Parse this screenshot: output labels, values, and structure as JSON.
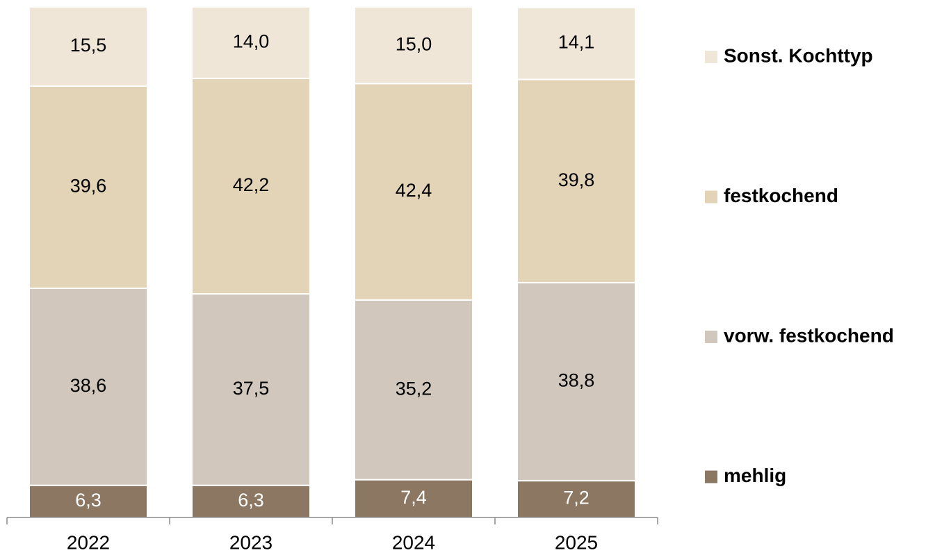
{
  "chart_data": {
    "type": "stacked_bar",
    "categories": [
      "2022",
      "2023",
      "2024",
      "2025"
    ],
    "series": [
      {
        "name": "mehlig",
        "color": "#8c7762",
        "values": [
          6.3,
          6.3,
          7.4,
          7.2
        ],
        "value_labels": [
          "6,3",
          "6,3",
          "7,4",
          "7,2"
        ]
      },
      {
        "name": "vorw. festkochend",
        "color": "#d1c7bd",
        "values": [
          38.6,
          37.5,
          35.2,
          38.8
        ],
        "value_labels": [
          "38,6",
          "37,5",
          "35,2",
          "38,8"
        ]
      },
      {
        "name": "festkochend",
        "color": "#e3d3b7",
        "values": [
          39.6,
          42.2,
          42.4,
          39.8
        ],
        "value_labels": [
          "39,6",
          "42,2",
          "42,4",
          "39,8"
        ]
      },
      {
        "name": "Sonst. Kochttyp",
        "color": "#f0e6d8",
        "values": [
          15.5,
          14.0,
          15.0,
          14.1
        ],
        "value_labels": [
          "15,5",
          "14,0",
          "15,0",
          "14,1"
        ]
      }
    ],
    "ylim": [
      0,
      100
    ],
    "legend": "right"
  }
}
